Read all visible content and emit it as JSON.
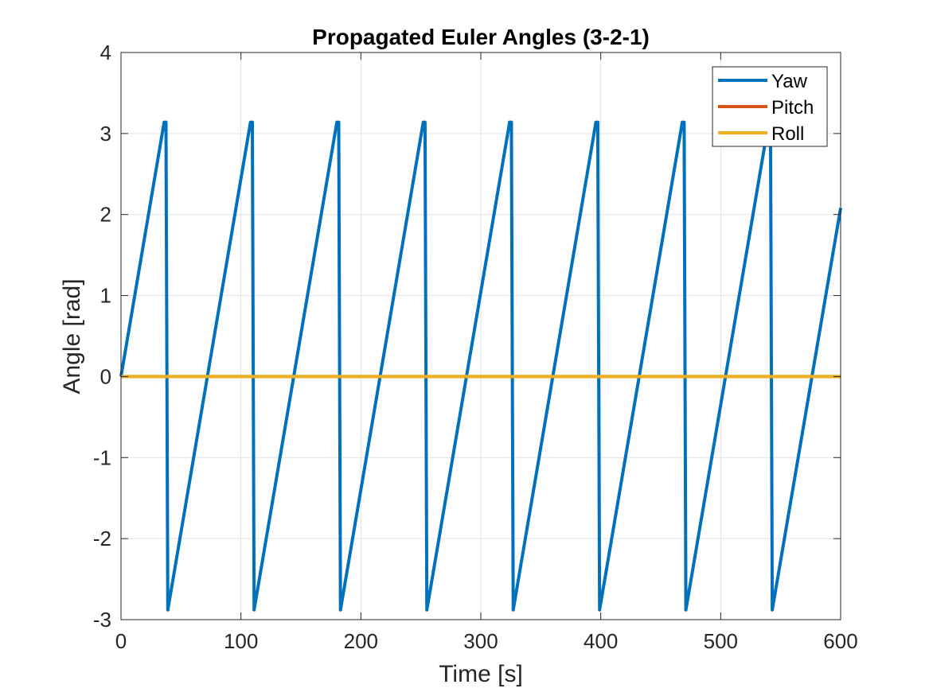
{
  "chart_data": {
    "type": "line",
    "title": "Propagated Euler Angles (3-2-1)",
    "xlabel": "Time [s]",
    "ylabel": "Angle [rad]",
    "xlim": [
      0,
      600
    ],
    "ylim": [
      -3,
      4
    ],
    "xticks": [
      0,
      100,
      200,
      300,
      400,
      500,
      600
    ],
    "yticks": [
      -3,
      -2,
      -1,
      0,
      1,
      2,
      3,
      4
    ],
    "xtick_labels": [
      "0",
      "100",
      "200",
      "300",
      "400",
      "500",
      "600"
    ],
    "ytick_labels": [
      "-3",
      "-2",
      "-1",
      "0",
      "1",
      "2",
      "3",
      "4"
    ],
    "grid": true,
    "legend_position": "top-right",
    "series": [
      {
        "name": "Yaw",
        "color": "#0072BD",
        "x": [
          0,
          36,
          37.5,
          39,
          108,
          109.5,
          111,
          180,
          181.5,
          183,
          252,
          253.5,
          255,
          324,
          325.5,
          327,
          396,
          397.5,
          399,
          468,
          469.5,
          471,
          540,
          541.5,
          543,
          600
        ],
        "y": [
          0,
          3.14,
          3.14,
          -2.88,
          3.14,
          3.14,
          -2.88,
          3.14,
          3.14,
          -2.88,
          3.14,
          3.14,
          -2.88,
          3.14,
          3.14,
          -2.88,
          3.14,
          3.14,
          -2.88,
          3.14,
          3.14,
          -2.88,
          3.14,
          3.14,
          -2.88,
          2.08
        ]
      },
      {
        "name": "Pitch",
        "color": "#D95319",
        "x": [
          0,
          600
        ],
        "y": [
          0,
          0
        ]
      },
      {
        "name": "Roll",
        "color": "#EDB120",
        "x": [
          0,
          600
        ],
        "y": [
          0,
          0
        ]
      }
    ]
  }
}
